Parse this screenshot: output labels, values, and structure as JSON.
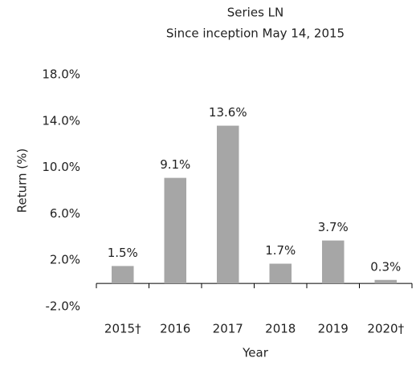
{
  "chart_data": {
    "type": "bar",
    "title": "Series LN",
    "subtitle": "Since inception May 14, 2015",
    "x_label": "Year",
    "y_label": "Return (%)",
    "categories": [
      "2015†",
      "2016",
      "2017",
      "2018",
      "2019",
      "2020†"
    ],
    "values": [
      1.5,
      9.1,
      13.6,
      1.7,
      3.7,
      0.3
    ],
    "value_labels": [
      "1.5%",
      "9.1%",
      "13.6%",
      "1.7%",
      "3.7%",
      "0.3%"
    ],
    "color": "#a6a6a6",
    "ylim": [
      -2,
      18
    ],
    "yticks": [
      {
        "value": -2,
        "label": "-2.0%"
      },
      {
        "value": 2,
        "label": "2.0%"
      },
      {
        "value": 6,
        "label": "6.0%"
      },
      {
        "value": 10,
        "label": "10.0%"
      },
      {
        "value": 14,
        "label": "14.0%"
      },
      {
        "value": 18,
        "label": "18.0%"
      }
    ],
    "grid": false
  }
}
